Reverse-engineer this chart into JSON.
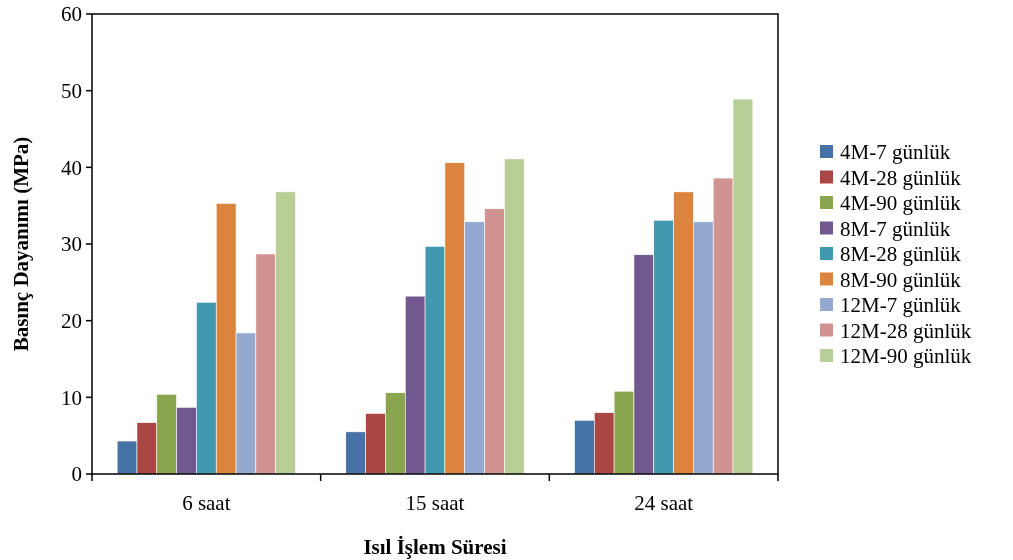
{
  "chart_data": {
    "type": "bar",
    "xlabel": "Isıl İşlem Süresi",
    "ylabel": "Basınç Dayanımı (MPa)",
    "categories": [
      "6 saat",
      "15 saat",
      "24 saat"
    ],
    "series": [
      {
        "name": "4M-7 günlük",
        "color": "#4572a7",
        "values": [
          4.3,
          5.5,
          7.0
        ]
      },
      {
        "name": "4M-28 günlük",
        "color": "#aa4643",
        "values": [
          6.7,
          7.9,
          8.0
        ]
      },
      {
        "name": "4M-90 günlük",
        "color": "#89a54e",
        "values": [
          10.4,
          10.6,
          10.8
        ]
      },
      {
        "name": "8M-7 günlük",
        "color": "#71588f",
        "values": [
          8.7,
          23.2,
          28.6
        ]
      },
      {
        "name": "8M-28 günlük",
        "color": "#4198af",
        "values": [
          22.4,
          29.7,
          33.1
        ]
      },
      {
        "name": "8M-90 günlük",
        "color": "#db843d",
        "values": [
          35.3,
          40.6,
          36.8
        ]
      },
      {
        "name": "12M-7 günlük",
        "color": "#93a9cf",
        "values": [
          18.4,
          32.9,
          32.9
        ]
      },
      {
        "name": "12M-28 günlük",
        "color": "#d19392",
        "values": [
          28.7,
          34.6,
          38.6
        ]
      },
      {
        "name": "12M-90 günlük",
        "color": "#b9cd96",
        "values": [
          36.8,
          41.1,
          48.9
        ]
      }
    ],
    "ylim": [
      0,
      60
    ],
    "yticks": [
      0,
      10,
      20,
      30,
      40,
      50,
      60
    ],
    "grid": false,
    "legend": "right"
  }
}
